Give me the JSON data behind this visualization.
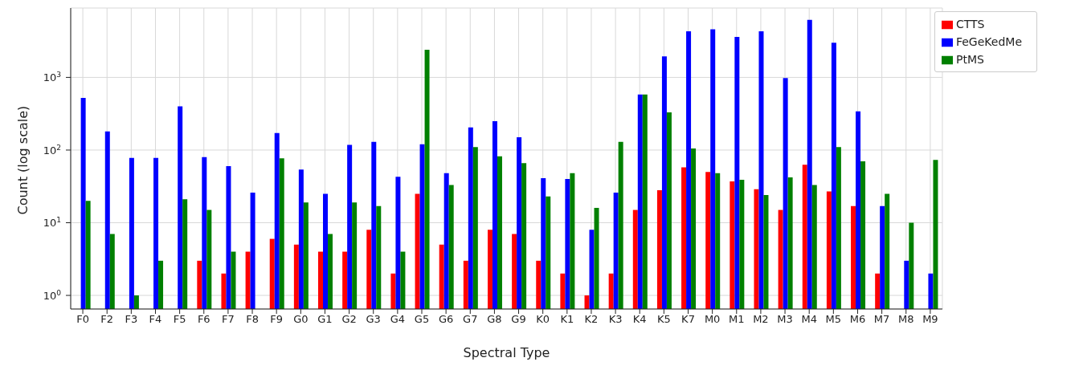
{
  "chart_data": {
    "type": "bar",
    "xlabel": "Spectral Type",
    "ylabel": "Count (log scale)",
    "categories": [
      "F0",
      "F2",
      "F3",
      "F4",
      "F5",
      "F6",
      "F7",
      "F8",
      "F9",
      "G0",
      "G1",
      "G2",
      "G3",
      "G4",
      "G5",
      "G6",
      "G7",
      "G8",
      "G9",
      "K0",
      "K1",
      "K2",
      "K3",
      "K4",
      "K5",
      "K7",
      "M0",
      "M1",
      "M2",
      "M3",
      "M4",
      "M5",
      "M6",
      "M7",
      "M8",
      "M9"
    ],
    "series": [
      {
        "name": "CTTS",
        "color": "#ff0000",
        "values": [
          null,
          null,
          null,
          null,
          null,
          3,
          2,
          4,
          6,
          5,
          4,
          4,
          8,
          2,
          25,
          5,
          3,
          8,
          7,
          3,
          2,
          1,
          2,
          15,
          28,
          58,
          50,
          37,
          29,
          15,
          63,
          27,
          17,
          2,
          null,
          null
        ]
      },
      {
        "name": "FeGeKedMe",
        "color": "#0000ff",
        "values": [
          520,
          180,
          78,
          78,
          400,
          80,
          60,
          26,
          172,
          54,
          25,
          118,
          130,
          43,
          120,
          48,
          205,
          250,
          150,
          41,
          40,
          8,
          26,
          580,
          1950,
          4300,
          4600,
          3600,
          4300,
          980,
          6200,
          3000,
          340,
          17,
          3,
          2
        ]
      },
      {
        "name": "PtMS",
        "color": "#008000",
        "values": [
          20,
          7,
          1,
          3,
          21,
          15,
          4,
          null,
          77,
          19,
          7,
          19,
          17,
          4,
          2400,
          33,
          110,
          82,
          66,
          23,
          48,
          16,
          130,
          580,
          330,
          105,
          48,
          39,
          24,
          42,
          33,
          110,
          70,
          25,
          10,
          73
        ]
      }
    ],
    "log": "y",
    "ylim": [
      0.65,
      9000
    ],
    "yticks": [
      {
        "value": 1,
        "label": "10$^{0}$"
      },
      {
        "value": 10,
        "label": "10$^{1}$"
      },
      {
        "value": 100,
        "label": "10$^{2}$"
      },
      {
        "value": 1000,
        "label": "10$^{3}$"
      }
    ],
    "grid": true,
    "legend": "top right"
  }
}
